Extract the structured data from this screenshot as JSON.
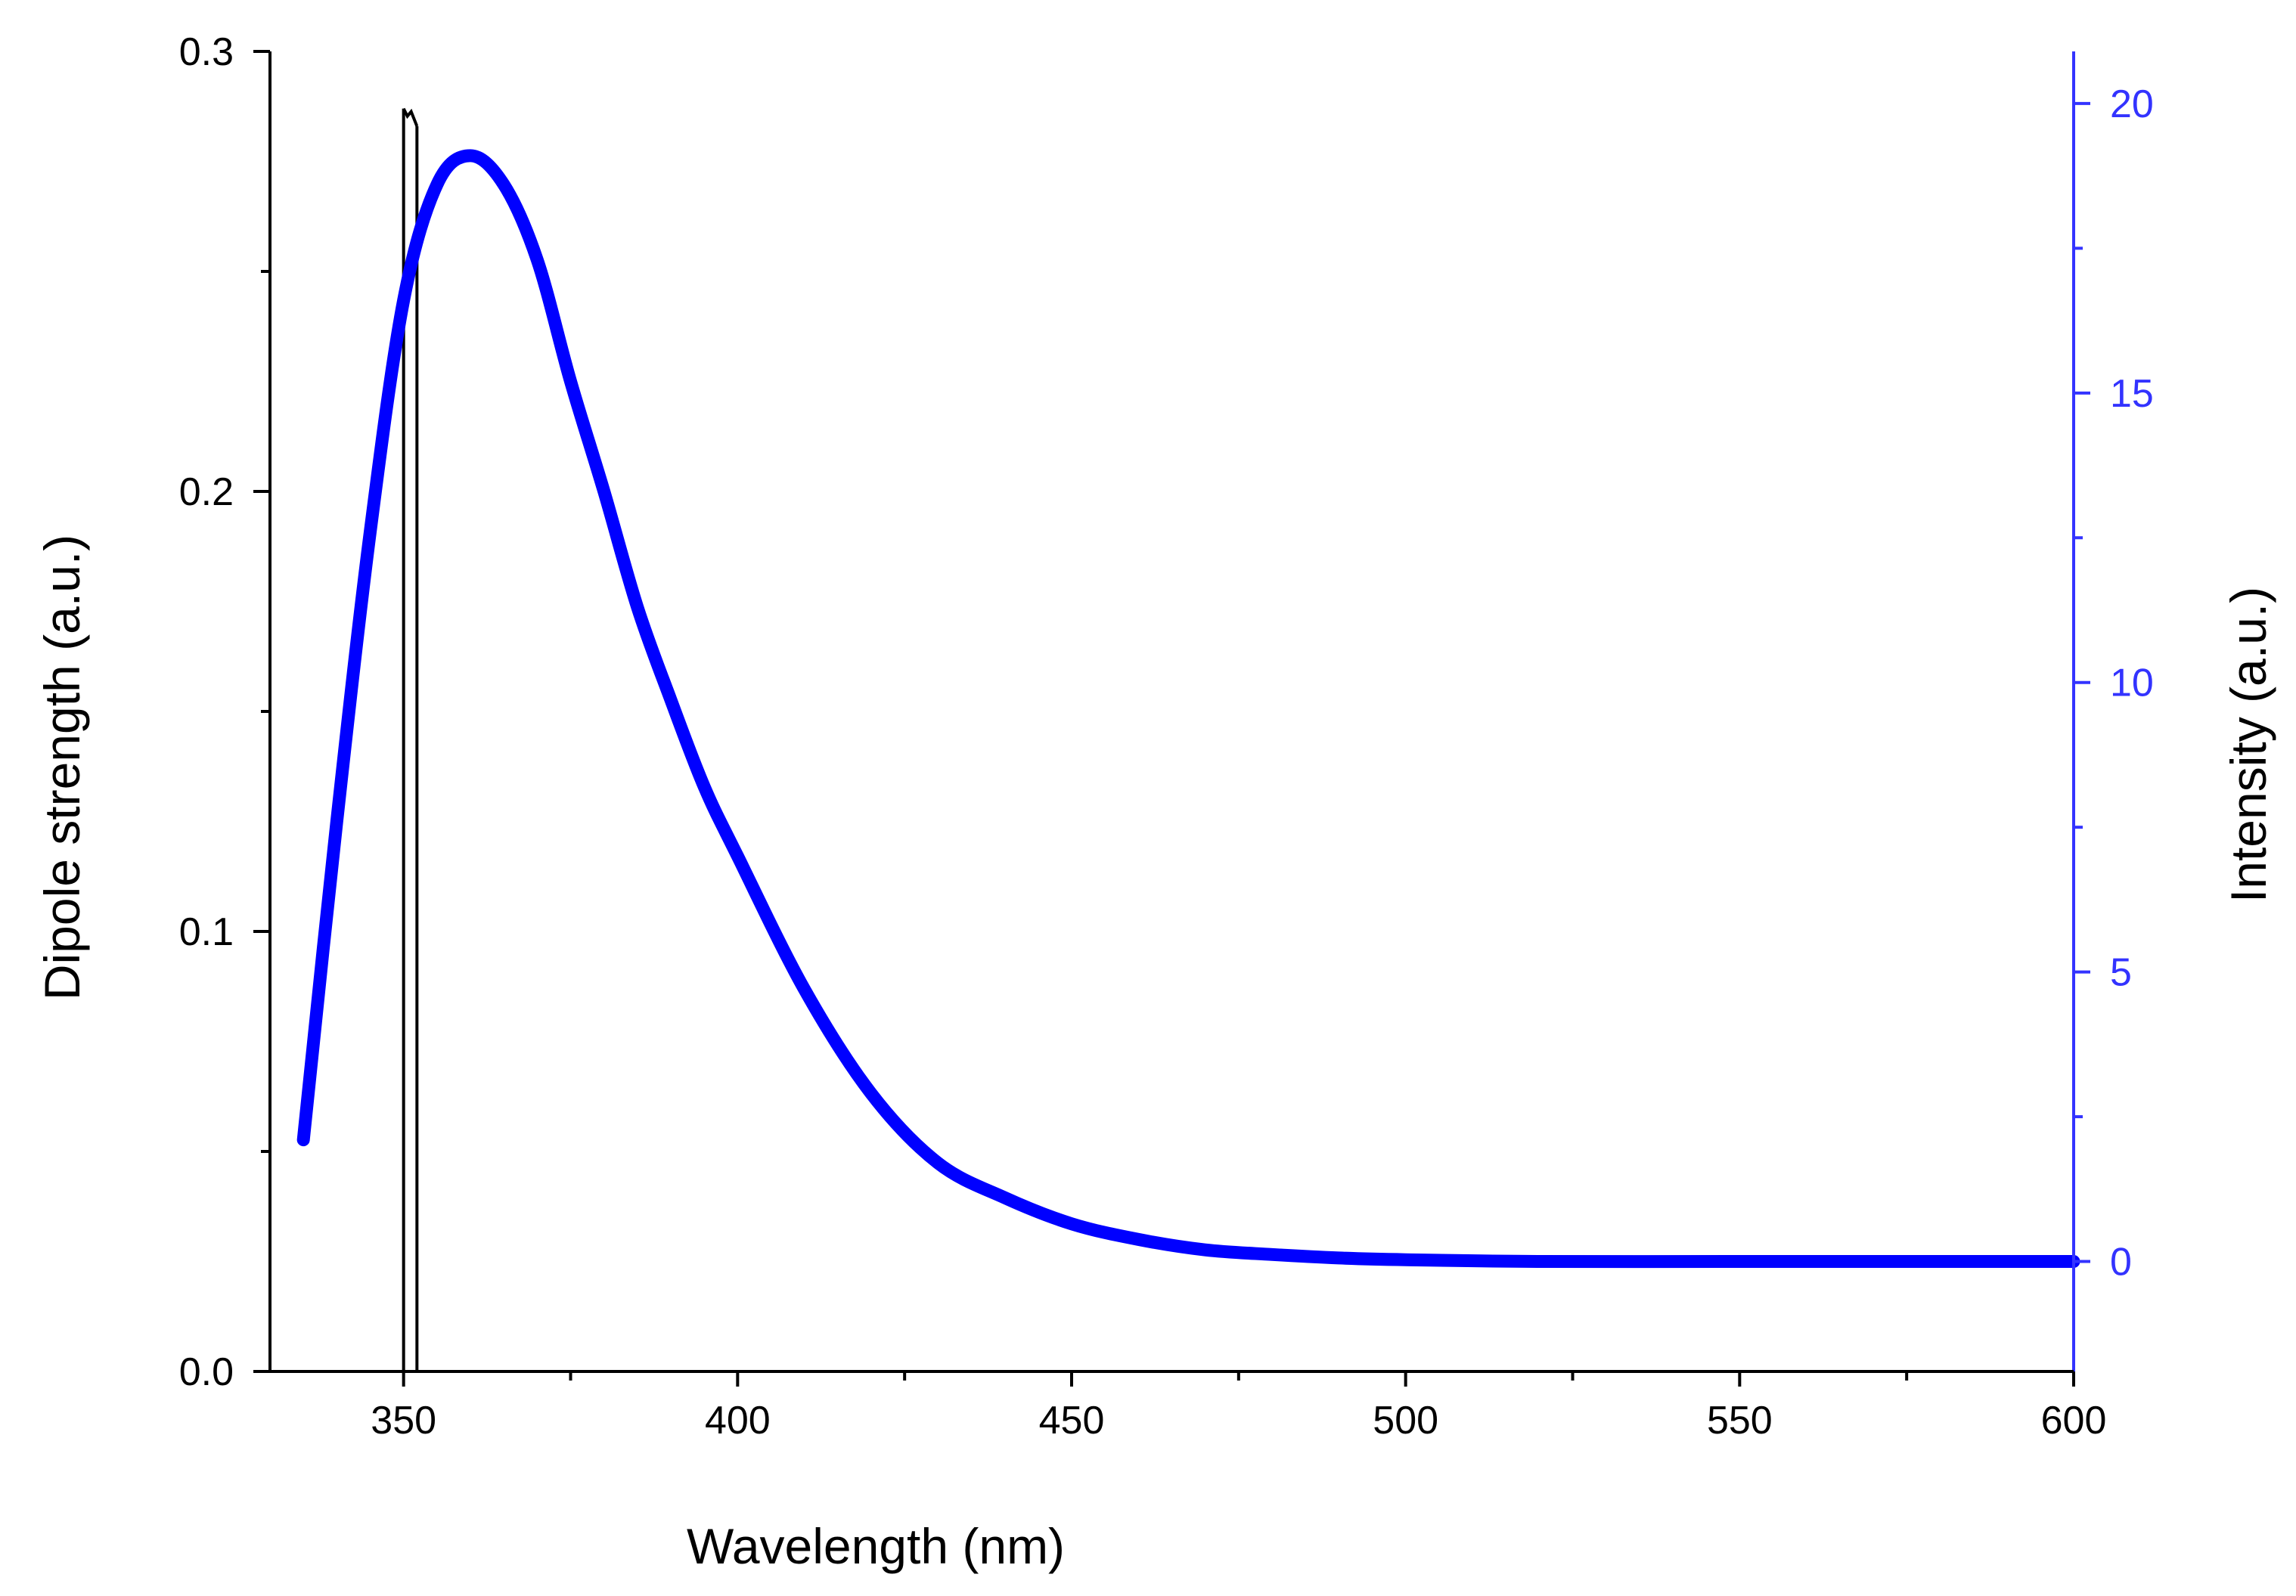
{
  "chart_data": {
    "type": "line",
    "title": "",
    "xlabel": "Wavelength (nm)",
    "ylabel_left": "Dipole strength (a.u.)",
    "ylabel_right": "Intensity (a.u.)",
    "xlim": [
      330,
      600
    ],
    "ylim_left": [
      0.0,
      0.3
    ],
    "ylim_right": [
      -1.9,
      20.9
    ],
    "x_ticks": [
      350,
      400,
      450,
      500,
      550,
      600
    ],
    "x_tick_labels": [
      "350",
      "400",
      "450",
      "500",
      "550",
      "600"
    ],
    "y_left_ticks": [
      0.0,
      0.1,
      0.2,
      0.3
    ],
    "y_left_tick_labels": [
      "0.0",
      "0.1",
      "0.2",
      "0.3"
    ],
    "y_right_ticks": [
      0,
      5,
      10,
      15,
      20
    ],
    "y_right_tick_labels": [
      "0",
      "5",
      "10",
      "15",
      "20"
    ],
    "grid": false,
    "legend": "none",
    "colors": {
      "intensity": "#0000ff",
      "dipole": "#000000",
      "right_axis": "#3333ff",
      "left_axis": "#000000"
    },
    "series": [
      {
        "name": "Dipole strength",
        "axis": "left",
        "style": "stick",
        "x": [
          350.0,
          352.0
        ],
        "values": [
          0.287,
          0.283
        ]
      },
      {
        "name": "Intensity",
        "axis": "right",
        "style": "line",
        "x": [
          335,
          340,
          345,
          350,
          355,
          360,
          365,
          370,
          375,
          380,
          385,
          390,
          395,
          400,
          410,
          420,
          430,
          440,
          450,
          460,
          470,
          480,
          490,
          500,
          520,
          550,
          575,
          600
        ],
        "values": [
          2.1,
          7.6,
          12.6,
          16.6,
          18.6,
          19.1,
          18.6,
          17.3,
          15.2,
          13.3,
          11.3,
          9.7,
          8.2,
          7.0,
          4.7,
          2.9,
          1.7,
          1.1,
          0.65,
          0.38,
          0.2,
          0.12,
          0.06,
          0.03,
          0.0,
          0.0,
          0.0,
          0.0
        ]
      }
    ]
  }
}
